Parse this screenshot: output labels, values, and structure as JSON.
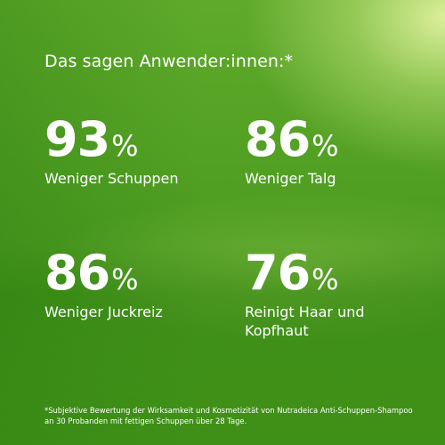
{
  "heading": "Das sagen Anwender:innen:*",
  "stats": [
    {
      "value": "93",
      "unit": "%",
      "label": "Weniger Schuppen"
    },
    {
      "value": "86",
      "unit": "%",
      "label": "Weniger Talg"
    },
    {
      "value": "86",
      "unit": "%",
      "label": "Weniger Juckreiz"
    },
    {
      "value": "76",
      "unit": "%",
      "label": "Reinigt Haar und Kopfhaut"
    }
  ],
  "footnote": "*Subjektive Bewertung der Wirksamkeit und Kosmetizität von Nutradeica Anti-Schuppen-Shampoo an 30 Probanden mit fettigen Schuppen über 28 Tage.",
  "colors": {
    "background": "#4f9e22",
    "highlight": "#e2f3a0",
    "text": "#ffffff"
  }
}
